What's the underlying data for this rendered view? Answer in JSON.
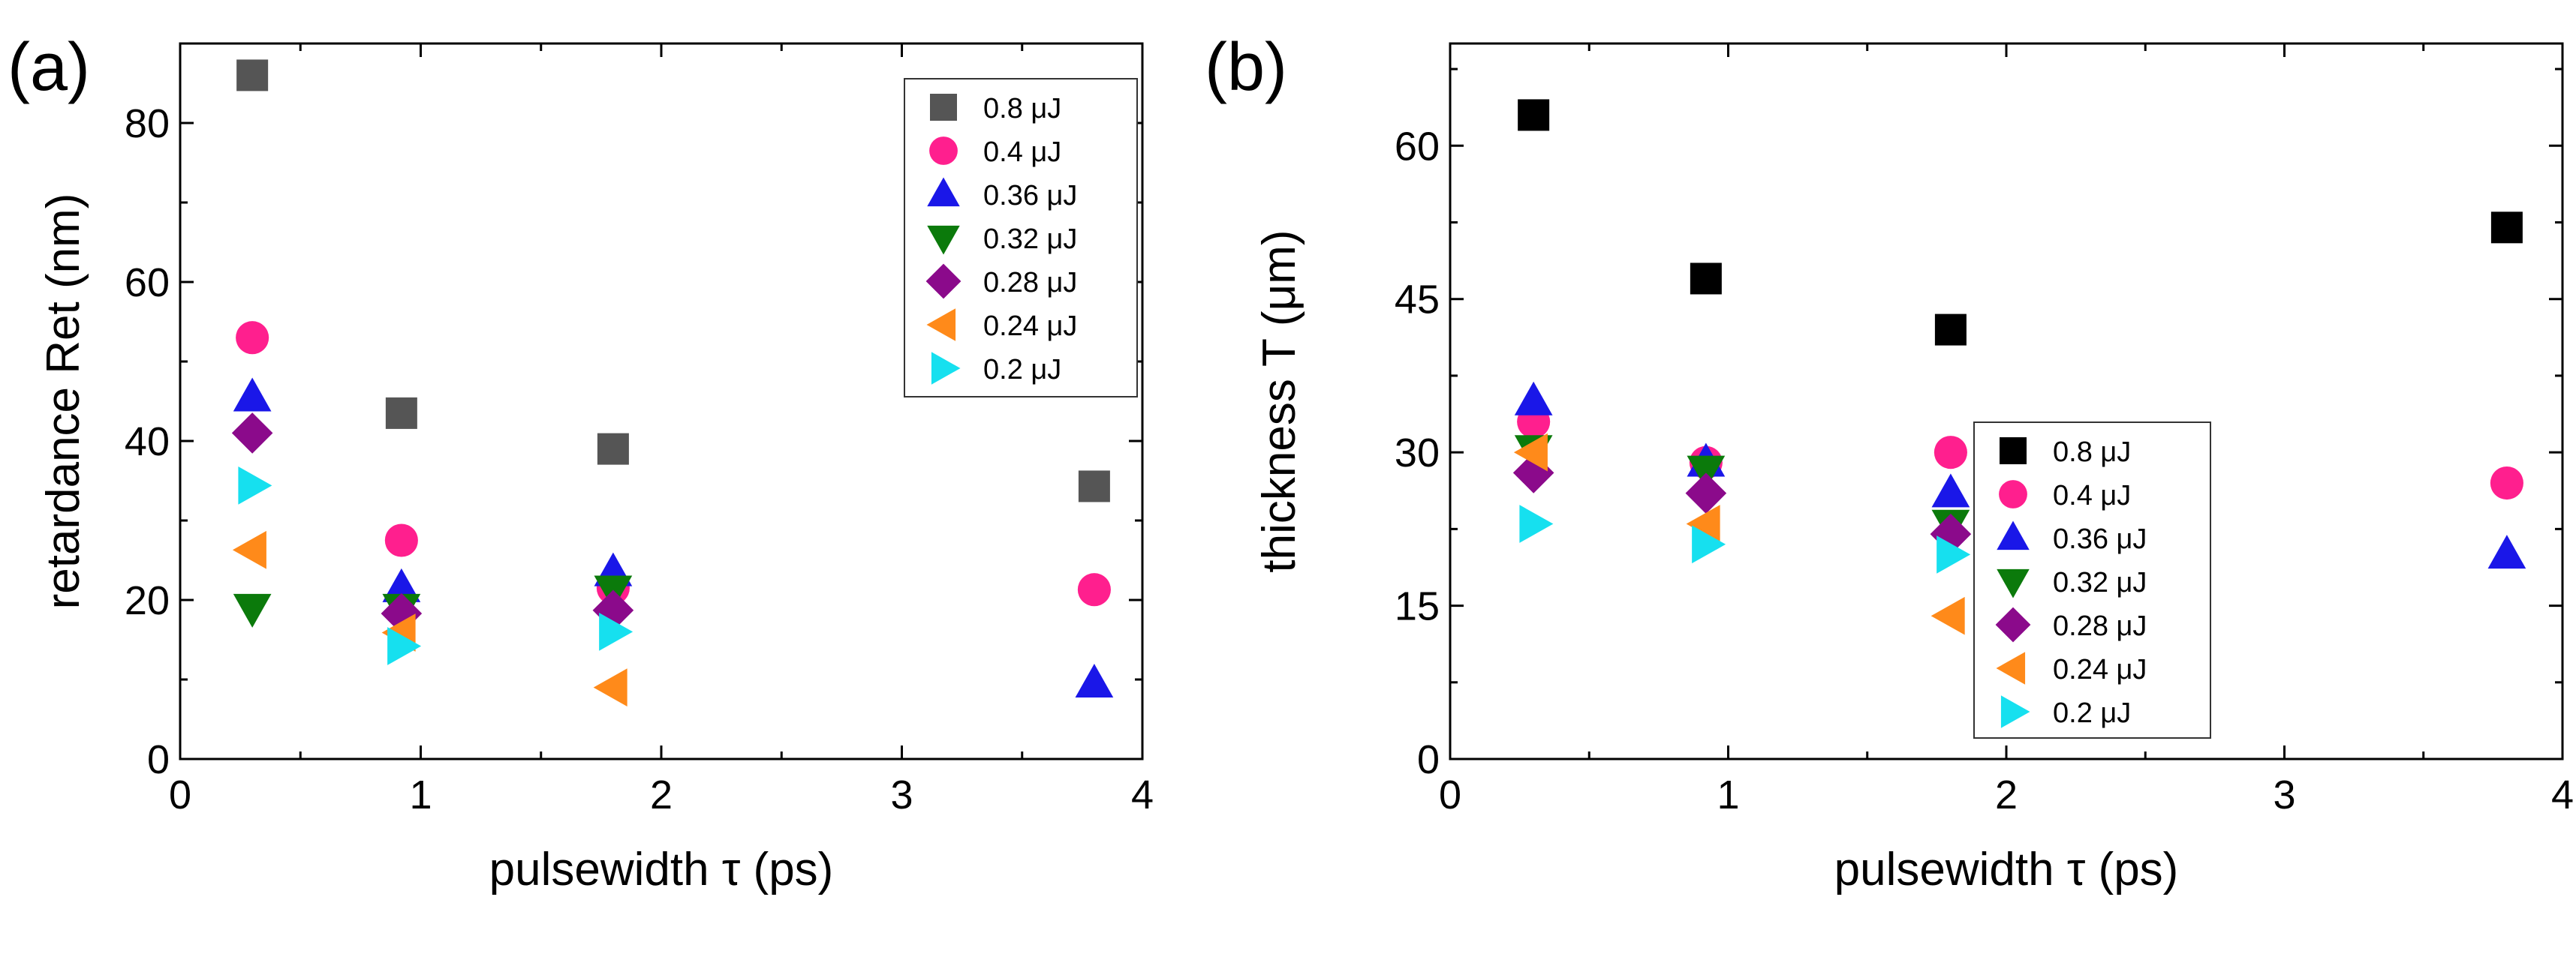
{
  "chart_data": [
    {
      "type": "scatter",
      "panel_label": "(a)",
      "xlabel": "pulsewidth τ (ps)",
      "ylabel": "retardance Ret (nm)",
      "xlim": [
        0,
        4
      ],
      "ylim": [
        0,
        90
      ],
      "xticks": [
        "0",
        "1",
        "2",
        "3",
        "4"
      ],
      "yticks": [
        "0",
        "20",
        "40",
        "60",
        "80"
      ],
      "xtick_values": [
        0,
        1,
        2,
        3,
        4
      ],
      "ytick_values": [
        0,
        20,
        40,
        60,
        80
      ],
      "legend_position": "top-right",
      "series": [
        {
          "name": "0.8 μJ",
          "marker": "square",
          "color": "#555555",
          "x": [
            0.3,
            0.92,
            1.8,
            3.8
          ],
          "y": [
            86,
            43.5,
            39,
            34.3
          ]
        },
        {
          "name": "0.4 μJ",
          "marker": "circle",
          "color": "#ff1f8e",
          "x": [
            0.3,
            0.92,
            1.8,
            3.8
          ],
          "y": [
            53,
            27.5,
            21.5,
            21.3
          ]
        },
        {
          "name": "0.36 μJ",
          "marker": "triangle-up",
          "color": "#1a17e8",
          "x": [
            0.3,
            0.92,
            1.8,
            3.8
          ],
          "y": [
            45.5,
            21.5,
            23.5,
            9.5
          ]
        },
        {
          "name": "0.32 μJ",
          "marker": "triangle-down",
          "color": "#0b7a0b",
          "x": [
            0.3,
            0.92,
            1.8
          ],
          "y": [
            19,
            19,
            21.3
          ]
        },
        {
          "name": "0.28 μJ",
          "marker": "diamond",
          "color": "#8b0a8b",
          "x": [
            0.3,
            0.92,
            1.8
          ],
          "y": [
            41,
            18.3,
            18.7
          ]
        },
        {
          "name": "0.24 μJ",
          "marker": "triangle-left",
          "color": "#ff8a1a",
          "x": [
            0.3,
            0.92,
            1.8
          ],
          "y": [
            26.3,
            15.9,
            9
          ]
        },
        {
          "name": "0.2 μJ",
          "marker": "triangle-right",
          "color": "#16e0ef",
          "x": [
            0.3,
            0.92,
            1.8
          ],
          "y": [
            34.4,
            14.2,
            16
          ]
        }
      ]
    },
    {
      "type": "scatter",
      "panel_label": "(b)",
      "xlabel": "pulsewidth τ (ps)",
      "ylabel": "thickness T (μm)",
      "xlim": [
        0,
        4
      ],
      "ylim": [
        0,
        70
      ],
      "xticks": [
        "0",
        "1",
        "2",
        "3",
        "4"
      ],
      "yticks": [
        "0",
        "15",
        "30",
        "45",
        "60"
      ],
      "xtick_values": [
        0,
        1,
        2,
        3,
        4
      ],
      "ytick_values": [
        0,
        15,
        30,
        45,
        60
      ],
      "legend_position": "bottom-right",
      "series": [
        {
          "name": "0.8 μJ",
          "marker": "square",
          "color": "#000000",
          "x": [
            0.3,
            0.92,
            1.8,
            3.8
          ],
          "y": [
            63,
            47,
            42,
            52
          ]
        },
        {
          "name": "0.4 μJ",
          "marker": "circle",
          "color": "#ff1f8e",
          "x": [
            0.3,
            0.92,
            1.8,
            3.8
          ],
          "y": [
            33,
            29,
            30,
            27
          ]
        },
        {
          "name": "0.36 μJ",
          "marker": "triangle-up",
          "color": "#1a17e8",
          "x": [
            0.3,
            0.92,
            1.8,
            3.8
          ],
          "y": [
            35,
            29,
            26,
            20
          ]
        },
        {
          "name": "0.32 μJ",
          "marker": "triangle-down",
          "color": "#0b7a0b",
          "x": [
            0.3,
            0.92,
            1.8
          ],
          "y": [
            30.3,
            28.3,
            23
          ]
        },
        {
          "name": "0.28 μJ",
          "marker": "diamond",
          "color": "#8b0a8b",
          "x": [
            0.3,
            0.92,
            1.8
          ],
          "y": [
            28,
            26,
            22
          ]
        },
        {
          "name": "0.24 μJ",
          "marker": "triangle-left",
          "color": "#ff8a1a",
          "x": [
            0.3,
            0.92,
            1.8
          ],
          "y": [
            30,
            23,
            14
          ]
        },
        {
          "name": "0.2 μJ",
          "marker": "triangle-right",
          "color": "#16e0ef",
          "x": [
            0.3,
            0.92,
            1.8
          ],
          "y": [
            23,
            21,
            20
          ]
        }
      ]
    }
  ]
}
